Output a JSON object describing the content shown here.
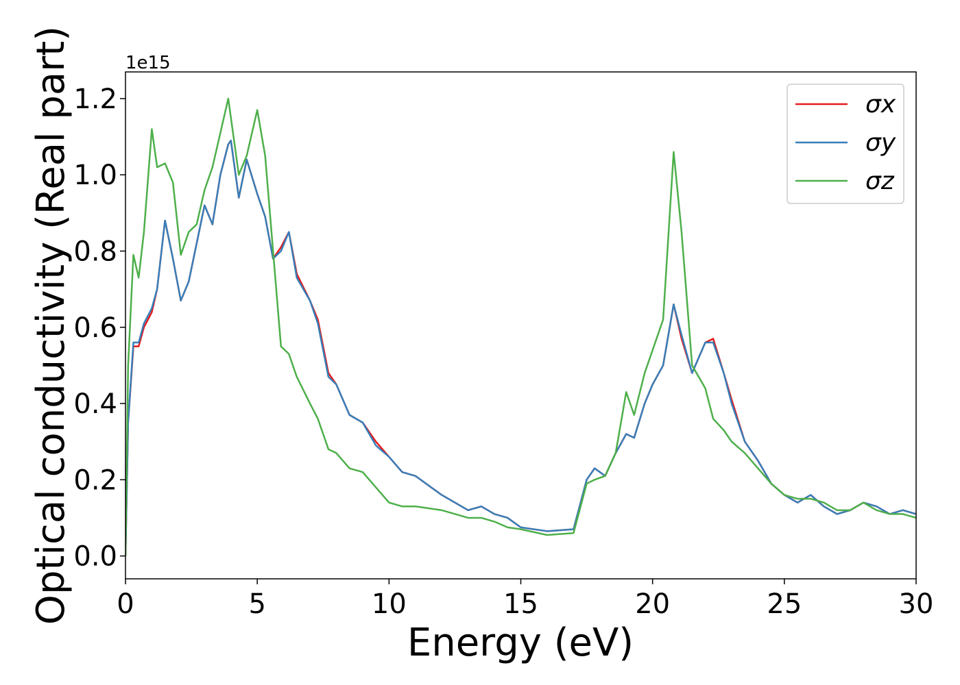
{
  "chart_data": {
    "type": "line",
    "xlabel": "Energy (eV)",
    "ylabel": "Optical conductivity (Real part)",
    "y_offset_label": "1e15",
    "xlim": [
      0,
      30
    ],
    "ylim": [
      -0.06,
      1.27
    ],
    "xticks": [
      0,
      5,
      10,
      15,
      20,
      25,
      30
    ],
    "yticks": [
      {
        "value": 0,
        "label": "0.0"
      },
      0.2,
      0.4,
      0.6,
      0.8,
      {
        "value": 1,
        "label": "1.0"
      },
      1.2
    ],
    "legend": "upper right",
    "x": [
      0,
      0.1,
      0.3,
      0.5,
      0.7,
      1.0,
      1.2,
      1.5,
      1.8,
      2.1,
      2.4,
      2.7,
      3.0,
      3.3,
      3.6,
      3.9,
      4.0,
      4.3,
      4.6,
      5.0,
      5.3,
      5.6,
      5.9,
      6.2,
      6.5,
      7.0,
      7.3,
      7.7,
      8.0,
      8.5,
      9.0,
      9.5,
      10.0,
      10.5,
      11.0,
      12.0,
      13.0,
      13.5,
      14.0,
      14.5,
      15.0,
      16.0,
      17.0,
      17.5,
      17.8,
      18.2,
      18.6,
      19.0,
      19.3,
      19.7,
      20.0,
      20.4,
      20.8,
      21.1,
      21.5,
      22.0,
      22.3,
      22.7,
      23.0,
      23.5,
      24.0,
      24.5,
      25.0,
      25.5,
      26.0,
      26.5,
      27.0,
      27.5,
      28.0,
      28.5,
      29.0,
      29.5,
      30.0
    ],
    "series": [
      {
        "name": "σx",
        "color": "#e41a1c",
        "values": [
          0.0,
          0.35,
          0.55,
          0.55,
          0.6,
          0.64,
          0.7,
          0.88,
          0.78,
          0.67,
          0.72,
          0.82,
          0.92,
          0.87,
          1.0,
          1.08,
          1.09,
          0.94,
          1.04,
          0.95,
          0.89,
          0.78,
          0.81,
          0.85,
          0.74,
          0.67,
          0.62,
          0.48,
          0.45,
          0.37,
          0.35,
          0.3,
          0.26,
          0.22,
          0.21,
          0.16,
          0.12,
          0.13,
          0.11,
          0.1,
          0.075,
          0.065,
          0.07,
          0.2,
          0.23,
          0.21,
          0.27,
          0.32,
          0.31,
          0.4,
          0.45,
          0.5,
          0.66,
          0.57,
          0.48,
          0.56,
          0.57,
          0.48,
          0.41,
          0.3,
          0.25,
          0.19,
          0.16,
          0.14,
          0.16,
          0.13,
          0.11,
          0.12,
          0.14,
          0.13,
          0.11,
          0.12,
          0.11
        ]
      },
      {
        "name": "σy",
        "color": "#377eb8",
        "values": [
          0.0,
          0.35,
          0.56,
          0.56,
          0.61,
          0.65,
          0.7,
          0.88,
          0.78,
          0.67,
          0.72,
          0.82,
          0.92,
          0.87,
          1.0,
          1.08,
          1.09,
          0.94,
          1.04,
          0.95,
          0.89,
          0.78,
          0.8,
          0.85,
          0.73,
          0.67,
          0.61,
          0.47,
          0.45,
          0.37,
          0.35,
          0.29,
          0.26,
          0.22,
          0.21,
          0.16,
          0.12,
          0.13,
          0.11,
          0.1,
          0.075,
          0.065,
          0.07,
          0.2,
          0.23,
          0.21,
          0.27,
          0.32,
          0.31,
          0.4,
          0.45,
          0.5,
          0.66,
          0.58,
          0.48,
          0.56,
          0.56,
          0.48,
          0.4,
          0.3,
          0.25,
          0.19,
          0.16,
          0.14,
          0.16,
          0.13,
          0.11,
          0.12,
          0.14,
          0.13,
          0.11,
          0.12,
          0.11
        ]
      },
      {
        "name": "σz",
        "color": "#4daf4a",
        "values": [
          0.0,
          0.5,
          0.79,
          0.73,
          0.85,
          1.12,
          1.02,
          1.03,
          0.98,
          0.79,
          0.85,
          0.87,
          0.96,
          1.02,
          1.11,
          1.2,
          1.15,
          1.0,
          1.05,
          1.17,
          1.05,
          0.8,
          0.55,
          0.53,
          0.47,
          0.4,
          0.36,
          0.28,
          0.27,
          0.23,
          0.22,
          0.18,
          0.14,
          0.13,
          0.13,
          0.12,
          0.1,
          0.1,
          0.09,
          0.075,
          0.07,
          0.055,
          0.06,
          0.19,
          0.2,
          0.21,
          0.27,
          0.43,
          0.37,
          0.48,
          0.54,
          0.62,
          1.06,
          0.85,
          0.5,
          0.44,
          0.36,
          0.33,
          0.3,
          0.27,
          0.23,
          0.19,
          0.16,
          0.15,
          0.15,
          0.14,
          0.12,
          0.12,
          0.14,
          0.12,
          0.11,
          0.11,
          0.1
        ]
      }
    ]
  }
}
